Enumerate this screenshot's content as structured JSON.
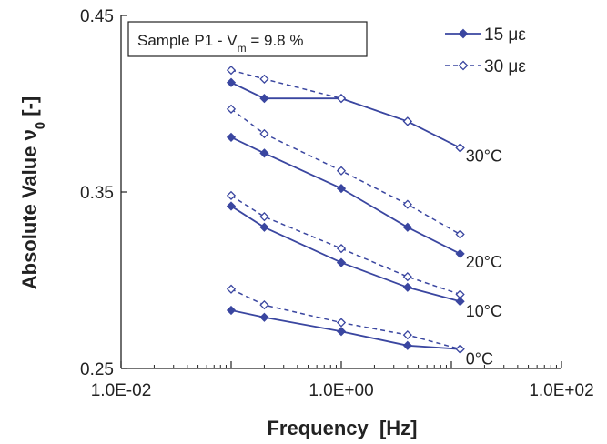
{
  "chart_data": {
    "type": "line",
    "xlabel": "Frequency  [Hz]",
    "ylabel": "Absolute Value ν",
    "ylabel_sub": "0",
    "ylabel_suffix": " [-]",
    "xscale": "log",
    "xlim": [
      0.01,
      100
    ],
    "ylim": [
      0.25,
      0.45
    ],
    "xticks": [
      0.01,
      1,
      100
    ],
    "xtick_labels": [
      "1.0E-02",
      "1.0E+00",
      "1.0E+02"
    ],
    "yticks": [
      0.25,
      0.35,
      0.45
    ],
    "ytick_labels": [
      "0.25",
      "0.35",
      "0.45"
    ],
    "grid": false,
    "legend_position": "top-right",
    "box_label": "Sample P1 - V",
    "box_label_sub": "m",
    "box_label_suffix": " = 9.8 %",
    "x": [
      0.1,
      0.2,
      1,
      4,
      12
    ],
    "legend": [
      {
        "label": "15 με",
        "style": "solid",
        "marker": "filled-diamond",
        "color": "#3a46a0"
      },
      {
        "label": "30 με",
        "style": "dashed",
        "marker": "open-diamond",
        "color": "#3a46a0"
      }
    ],
    "series": [
      {
        "name": "15 με",
        "group": "30°C",
        "style": "solid",
        "values": [
          0.412,
          0.403,
          0.403,
          0.39,
          0.375
        ]
      },
      {
        "name": "30 με",
        "group": "30°C",
        "style": "dashed",
        "values": [
          0.419,
          0.414,
          0.403,
          0.39,
          0.375
        ]
      },
      {
        "name": "15 με",
        "group": "20°C",
        "style": "solid",
        "values": [
          0.381,
          0.372,
          0.352,
          0.33,
          0.315
        ]
      },
      {
        "name": "30 με",
        "group": "20°C",
        "style": "dashed",
        "values": [
          0.397,
          0.383,
          0.362,
          0.343,
          0.326
        ]
      },
      {
        "name": "15 με",
        "group": "10°C",
        "style": "solid",
        "values": [
          0.342,
          0.33,
          0.31,
          0.296,
          0.288
        ]
      },
      {
        "name": "30 με",
        "group": "10°C",
        "style": "dashed",
        "values": [
          0.348,
          0.336,
          0.318,
          0.302,
          0.292
        ]
      },
      {
        "name": "15 με",
        "group": "0°C",
        "style": "solid",
        "values": [
          0.283,
          0.279,
          0.271,
          0.263,
          0.261
        ]
      },
      {
        "name": "30 με",
        "group": "0°C",
        "style": "dashed",
        "values": [
          0.295,
          0.286,
          0.276,
          0.269,
          0.261
        ]
      }
    ],
    "annotations": [
      {
        "text": "30°C",
        "x": 13,
        "y": 0.373
      },
      {
        "text": "20°C",
        "x": 13,
        "y": 0.313
      },
      {
        "text": "10°C",
        "x": 13,
        "y": 0.285
      },
      {
        "text": "0°C",
        "x": 13,
        "y": 0.258
      }
    ],
    "colors": {
      "line": "#3a46a0",
      "axis": "#222222",
      "text": "#222222"
    }
  }
}
